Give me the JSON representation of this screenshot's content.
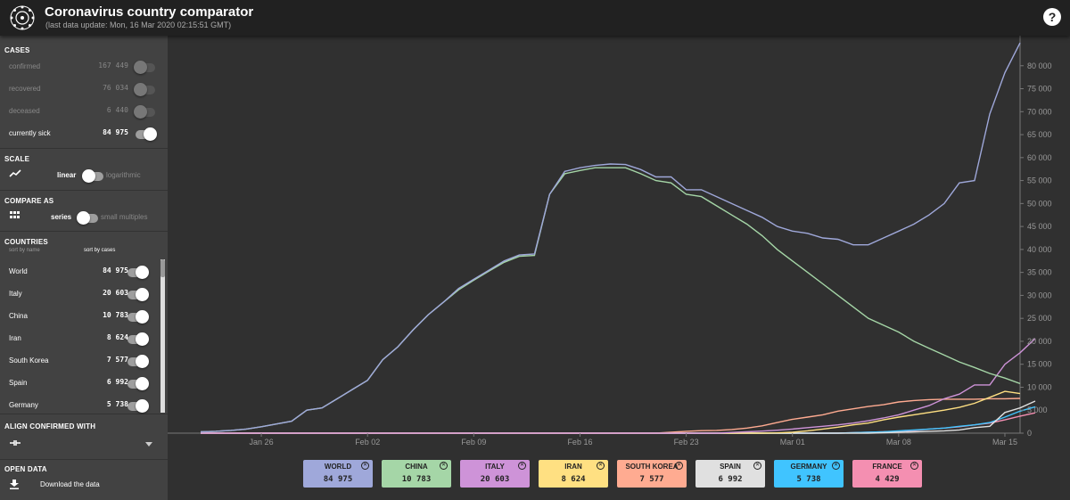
{
  "header": {
    "title": "Coronavirus country comparator",
    "subtitle": "(last data update: Mon, 16 Mar 2020 02:15:51 GMT)",
    "help": "?"
  },
  "cases": {
    "title": "CASES",
    "items": [
      {
        "label": "confirmed",
        "value": "167 449",
        "active": false
      },
      {
        "label": "recovered",
        "value": "76 034",
        "active": false
      },
      {
        "label": "deceased",
        "value": "6 440",
        "active": false
      },
      {
        "label": "currently sick",
        "value": "84 975",
        "active": true
      }
    ]
  },
  "scale": {
    "title": "SCALE",
    "left": "linear",
    "right": "logarithmic"
  },
  "compare": {
    "title": "COMPARE AS",
    "left": "series",
    "right": "small multiples"
  },
  "countries": {
    "title": "COUNTRIES",
    "sort_name": "sort by name",
    "sort_cases": "sort by cases",
    "items": [
      {
        "label": "World",
        "value": "84 975"
      },
      {
        "label": "Italy",
        "value": "20 603"
      },
      {
        "label": "China",
        "value": "10 783"
      },
      {
        "label": "Iran",
        "value": "8 624"
      },
      {
        "label": "South Korea",
        "value": "7 577"
      },
      {
        "label": "Spain",
        "value": "6 992"
      },
      {
        "label": "Germany",
        "value": "5 738"
      }
    ]
  },
  "align": {
    "title": "ALIGN CONFIRMED WITH"
  },
  "open_data": {
    "title": "OPEN DATA",
    "download": "Download the data"
  },
  "chart_data": {
    "type": "line",
    "x_ticks": [
      "Jan 26",
      "Feb 02",
      "Feb 09",
      "Feb 16",
      "Feb 23",
      "Mar 01",
      "Mar 08",
      "Mar 15"
    ],
    "y_ticks": [
      "0",
      "5 000",
      "10 000",
      "15 000",
      "20 000",
      "25 000",
      "30 000",
      "35 000",
      "40 000",
      "45 000",
      "50 000",
      "55 000",
      "60 000",
      "65 000",
      "70 000",
      "75 000",
      "80 000"
    ],
    "ylim": [
      0,
      85000
    ],
    "start": "Jan 22",
    "series": [
      {
        "name": "WORLD",
        "color": "#9fa8da",
        "values": [
          300,
          400,
          600,
          900,
          1400,
          2000,
          2600,
          5000,
          5500,
          7500,
          9500,
          11500,
          16000,
          18800,
          22500,
          25800,
          28500,
          31500,
          33500,
          35500,
          37500,
          38800,
          39000,
          52000,
          57000,
          57800,
          58300,
          58600,
          58500,
          57400,
          55800,
          55800,
          53000,
          53000,
          51500,
          50000,
          48500,
          47000,
          45000,
          44000,
          43500,
          42500,
          42200,
          41000,
          41000,
          42500,
          44000,
          45500,
          47500,
          50000,
          54500,
          55000,
          69500,
          78500,
          84975
        ],
        "label_value": "84 975"
      },
      {
        "name": "CHINA",
        "color": "#a5d6a7",
        "values": [
          300,
          400,
          600,
          900,
          1400,
          2000,
          2600,
          5000,
          5500,
          7500,
          9500,
          11500,
          16000,
          18800,
          22500,
          25800,
          28500,
          31200,
          33300,
          35300,
          37200,
          38500,
          38700,
          52000,
          56500,
          57200,
          57800,
          57800,
          57800,
          56500,
          55000,
          54500,
          52000,
          51500,
          49500,
          47500,
          45500,
          43000,
          40000,
          37500,
          35000,
          32500,
          30000,
          27500,
          25000,
          23500,
          22000,
          20000,
          18500,
          17000,
          15500,
          14300,
          13000,
          12000,
          10783
        ],
        "label_value": "10 783"
      },
      {
        "name": "ITALY",
        "color": "#ce93d8",
        "values": [
          0,
          0,
          0,
          0,
          0,
          0,
          0,
          0,
          0,
          0,
          0,
          0,
          0,
          0,
          0,
          0,
          0,
          0,
          0,
          0,
          0,
          0,
          0,
          0,
          0,
          0,
          0,
          0,
          0,
          0,
          0,
          0,
          0,
          0,
          0,
          150,
          300,
          450,
          650,
          900,
          1200,
          1500,
          1800,
          2200,
          2700,
          3300,
          4000,
          5000,
          6000,
          7500,
          8500,
          10500,
          10500,
          15000,
          17500,
          20603
        ],
        "label_value": "20 603"
      },
      {
        "name": "IRAN",
        "color": "#ffe082",
        "values": [
          0,
          0,
          0,
          0,
          0,
          0,
          0,
          0,
          0,
          0,
          0,
          0,
          0,
          0,
          0,
          0,
          0,
          0,
          0,
          0,
          0,
          0,
          0,
          0,
          0,
          0,
          0,
          0,
          0,
          0,
          0,
          0,
          0,
          0,
          0,
          0,
          0,
          0,
          50,
          200,
          500,
          900,
          1300,
          1800,
          2200,
          2900,
          3500,
          4000,
          4500,
          5000,
          5600,
          6500,
          7800,
          9100,
          8624
        ],
        "label_value": "8 624"
      },
      {
        "name": "SOUTH KOREA",
        "color": "#ffab91",
        "values": [
          0,
          0,
          0,
          0,
          0,
          0,
          0,
          0,
          0,
          0,
          0,
          0,
          0,
          0,
          0,
          0,
          0,
          0,
          0,
          0,
          0,
          0,
          0,
          0,
          0,
          0,
          0,
          0,
          0,
          0,
          0,
          200,
          400,
          550,
          600,
          800,
          1100,
          1600,
          2300,
          3000,
          3500,
          4000,
          4800,
          5300,
          5800,
          6200,
          6800,
          7100,
          7300,
          7400,
          7400,
          7400,
          7500,
          7500,
          7577
        ],
        "label_value": "7 577"
      },
      {
        "name": "SPAIN",
        "color": "#e0e0e0",
        "values": [
          0,
          0,
          0,
          0,
          0,
          0,
          0,
          0,
          0,
          0,
          0,
          0,
          0,
          0,
          0,
          0,
          0,
          0,
          0,
          0,
          0,
          0,
          0,
          0,
          0,
          0,
          0,
          0,
          0,
          0,
          0,
          0,
          0,
          0,
          0,
          0,
          0,
          0,
          0,
          0,
          0,
          0,
          0,
          0,
          0,
          100,
          200,
          300,
          400,
          500,
          700,
          1200,
          1500,
          4500,
          5500,
          6992
        ],
        "label_value": "6 992"
      },
      {
        "name": "GERMANY",
        "color": "#40c4ff",
        "values": [
          0,
          0,
          0,
          0,
          0,
          0,
          0,
          0,
          0,
          0,
          0,
          0,
          0,
          0,
          0,
          0,
          0,
          0,
          0,
          0,
          0,
          0,
          0,
          0,
          0,
          0,
          0,
          0,
          0,
          0,
          0,
          0,
          0,
          0,
          0,
          0,
          0,
          0,
          0,
          0,
          0,
          0,
          0,
          100,
          200,
          300,
          500,
          700,
          900,
          1100,
          1500,
          1800,
          2300,
          3500,
          4800,
          5738
        ],
        "label_value": "5 738"
      },
      {
        "name": "FRANCE",
        "color": "#f48fb1",
        "values": [
          0,
          0,
          0,
          0,
          0,
          0,
          0,
          0,
          0,
          0,
          0,
          0,
          0,
          0,
          0,
          0,
          0,
          0,
          0,
          0,
          0,
          0,
          0,
          0,
          0,
          0,
          0,
          0,
          0,
          0,
          0,
          0,
          0,
          0,
          0,
          0,
          0,
          0,
          0,
          0,
          0,
          0,
          0,
          100,
          200,
          300,
          400,
          600,
          900,
          1100,
          1400,
          1800,
          2200,
          2900,
          3700,
          4429
        ],
        "label_value": "4 429"
      }
    ]
  }
}
